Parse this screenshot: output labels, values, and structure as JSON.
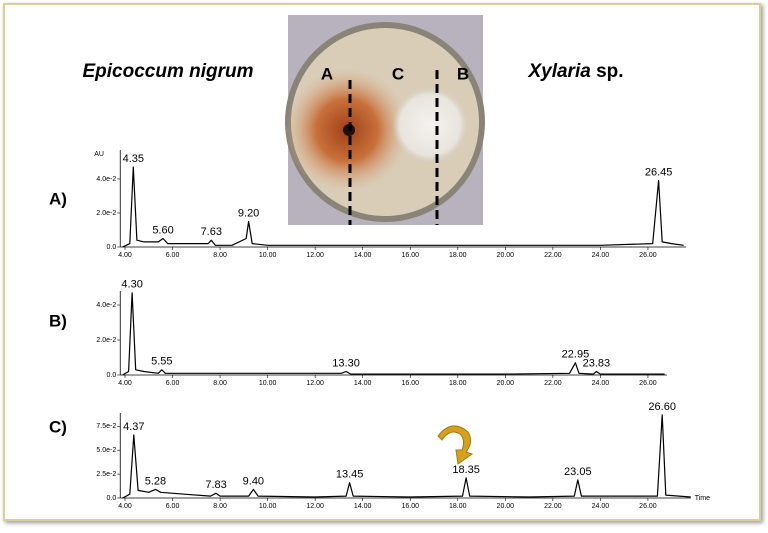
{
  "species_left": "Epicoccum nigrum",
  "species_right": {
    "genus": "Xylaria",
    "suffix": "sp."
  },
  "photo_labels": [
    "A",
    "C",
    "B"
  ],
  "chart_data": [
    {
      "type": "line",
      "title": "A)",
      "ylabel": "AU",
      "color": "#000000",
      "x": [
        3.9,
        4.2,
        4.35,
        4.5,
        4.8,
        5.4,
        5.6,
        5.8,
        6.5,
        7.5,
        7.63,
        7.8,
        8.5,
        9.1,
        9.2,
        9.35,
        10,
        12,
        14,
        16,
        18,
        20,
        22,
        24,
        26.2,
        26.45,
        26.6,
        27,
        27.5
      ],
      "values": [
        0,
        0.002,
        0.047,
        0.004,
        0.003,
        0.003,
        0.005,
        0.002,
        0.002,
        0.002,
        0.004,
        0.001,
        0.001,
        0.005,
        0.015,
        0.002,
        0.001,
        0.001,
        0.001,
        0.001,
        0.001,
        0.001,
        0.001,
        0.001,
        0.002,
        0.039,
        0.003,
        0.002,
        0.001
      ],
      "peaks": [
        4.35,
        {
          "value": 5.6,
          "label": "5.60"
        },
        7.63,
        {
          "value": 9.2,
          "label": "9.20"
        },
        26.45
      ],
      "xlim": [
        3.8,
        27.6
      ],
      "ylim": [
        0,
        0.057
      ],
      "xticks": [
        {
          "value": 4,
          "label": "4.00"
        },
        {
          "value": 6,
          "label": "6.00"
        },
        {
          "value": 8,
          "label": "8.00"
        },
        {
          "value": 10,
          "label": "10.00"
        },
        {
          "value": 12,
          "label": "12.00"
        },
        {
          "value": 14,
          "label": "14.00"
        },
        {
          "value": 16,
          "label": "16.00"
        },
        {
          "value": 18,
          "label": "18.00"
        },
        {
          "value": 20,
          "label": "20.00"
        },
        {
          "value": 22,
          "label": "22.00"
        },
        {
          "value": 24,
          "label": "24.00"
        },
        {
          "value": 26,
          "label": "26.00"
        }
      ],
      "yticks": [
        {
          "value": 0,
          "label": "0.0"
        },
        {
          "value": 0.02,
          "label": "2.0e-2"
        },
        {
          "value": 0.04,
          "label": "4.0e-2"
        }
      ]
    },
    {
      "type": "line",
      "title": "B)",
      "color": "#000000",
      "x": [
        3.9,
        4.15,
        4.3,
        4.45,
        4.8,
        5.4,
        5.55,
        5.7,
        7,
        9,
        11,
        13.1,
        13.3,
        13.5,
        16,
        20,
        22.7,
        22.95,
        23.1,
        23.7,
        23.83,
        24,
        26,
        26.7
      ],
      "values": [
        0,
        0.002,
        0.047,
        0.003,
        0.002,
        0.001,
        0.003,
        0.001,
        0.001,
        0.001,
        0.001,
        0.001,
        0.002,
        0.0005,
        0.0005,
        0.0005,
        0.001,
        0.007,
        0.001,
        0.0005,
        0.002,
        0.0005,
        0.0005,
        0.0005
      ],
      "peaks": [
        {
          "value": 4.3,
          "label": "4.30"
        },
        5.55,
        {
          "value": 13.3,
          "label": "13.30"
        },
        22.95,
        23.83
      ],
      "xlim": [
        3.8,
        26.8
      ],
      "ylim": [
        0,
        0.048
      ],
      "xticks": [
        {
          "value": 4,
          "label": "4.00"
        },
        {
          "value": 6,
          "label": "6.00"
        },
        {
          "value": 8,
          "label": "8.00"
        },
        {
          "value": 10,
          "label": "10.00"
        },
        {
          "value": 12,
          "label": "12.00"
        },
        {
          "value": 14,
          "label": "14.00"
        },
        {
          "value": 16,
          "label": "16.00"
        },
        {
          "value": 18,
          "label": "18.00"
        },
        {
          "value": 20,
          "label": "20.00"
        },
        {
          "value": 22,
          "label": "22.00"
        },
        {
          "value": 24,
          "label": "24.00"
        },
        {
          "value": 26,
          "label": "26.00"
        }
      ],
      "yticks": [
        {
          "value": 0,
          "label": "0.0"
        },
        {
          "value": 0.02,
          "label": "2.0e-2"
        },
        {
          "value": 0.04,
          "label": "4.0e-2"
        }
      ]
    },
    {
      "type": "line",
      "title": "C)",
      "xlabel": "Time",
      "color": "#000000",
      "x": [
        3.9,
        4.2,
        4.37,
        4.55,
        5,
        5.28,
        5.5,
        6.5,
        7.6,
        7.83,
        8,
        9.2,
        9.4,
        9.6,
        12,
        13.3,
        13.45,
        13.6,
        16,
        18.2,
        18.35,
        18.5,
        21,
        22.9,
        23.05,
        23.2,
        26.4,
        26.6,
        26.75,
        27.8
      ],
      "values": [
        0,
        0.004,
        0.066,
        0.008,
        0.006,
        0.009,
        0.006,
        0.004,
        0.002,
        0.005,
        0.002,
        0.002,
        0.009,
        0.002,
        0.001,
        0.002,
        0.016,
        0.002,
        0.001,
        0.002,
        0.021,
        0.002,
        0.001,
        0.002,
        0.019,
        0.002,
        0.002,
        0.087,
        0.003,
        0.001
      ],
      "peaks": [
        4.37,
        5.28,
        7.83,
        {
          "value": 9.4,
          "label": "9.40"
        },
        13.45,
        18.35,
        23.05,
        {
          "value": 26.6,
          "label": "26.60"
        }
      ],
      "xlim": [
        3.8,
        27.8
      ],
      "ylim": [
        0,
        0.089
      ],
      "xticks": [
        {
          "value": 4,
          "label": "4.00"
        },
        {
          "value": 6,
          "label": "6.00"
        },
        {
          "value": 8,
          "label": "8.00"
        },
        {
          "value": 10,
          "label": "10.00"
        },
        {
          "value": 12,
          "label": "12.00"
        },
        {
          "value": 14,
          "label": "14.00"
        },
        {
          "value": 16,
          "label": "16.00"
        },
        {
          "value": 18,
          "label": "18.00"
        },
        {
          "value": 20,
          "label": "20.00"
        },
        {
          "value": 22,
          "label": "22.00"
        },
        {
          "value": 24,
          "label": "24.00"
        },
        {
          "value": 26,
          "label": "26.00"
        }
      ],
      "yticks": [
        {
          "value": 0,
          "label": "0.0"
        },
        {
          "value": 0.025,
          "label": "2.5e-2"
        },
        {
          "value": 0.05,
          "label": "5.0e-2"
        },
        {
          "value": 0.075,
          "label": "7.5e-2"
        }
      ]
    }
  ]
}
